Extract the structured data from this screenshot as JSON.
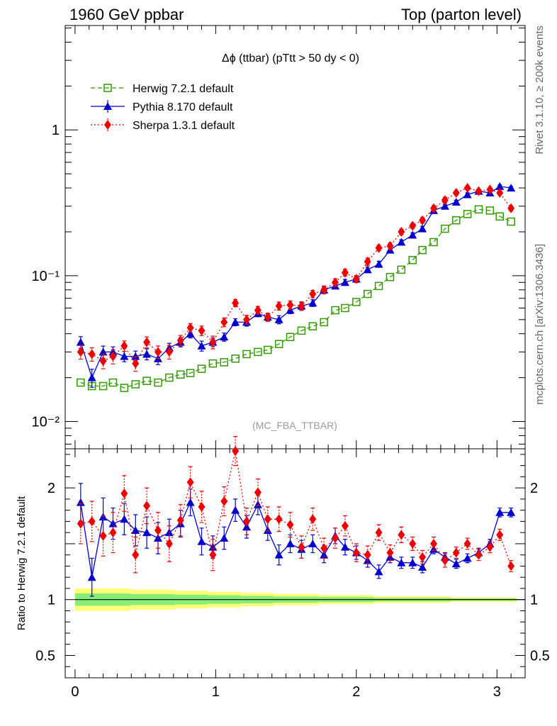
{
  "header": {
    "left": "1960 GeV ppbar",
    "right": "Top (parton level)"
  },
  "side_labels": {
    "rivet": "Rivet 3.1.10, ≥ 200k events",
    "mcplots": "mcplots.cern.ch [arXiv:1306.3436]"
  },
  "chart_data": {
    "type": "line",
    "title": "Δϕ (ttbar) (pTtt > 50 dy < 0)",
    "watermark": "(MC_FBA_TTBAR)",
    "xlim": [
      -0.07,
      3.2
    ],
    "x_ticks": [
      0,
      1,
      2,
      3
    ],
    "x_tick_labels": [
      "0",
      "1",
      "2",
      "3"
    ],
    "main": {
      "yscale": "log",
      "ylim": [
        0.0065,
        5.2
      ],
      "y_tick_labels": [
        {
          "value": 1,
          "label": "1"
        },
        {
          "value": 0.1,
          "label": "10⁻¹"
        },
        {
          "value": 0.01,
          "label": "10⁻²"
        }
      ]
    },
    "ratio": {
      "ylabel": "Ratio to Herwig 7.2.1 default",
      "ylim": [
        0.3,
        2.35
      ],
      "y_tick_labels": [
        {
          "value": 0.5,
          "label": "0.5"
        },
        {
          "value": 1,
          "label": "1"
        },
        {
          "value": 2,
          "label": "2"
        }
      ]
    },
    "x": [
      0.04,
      0.12,
      0.2,
      0.27,
      0.35,
      0.43,
      0.51,
      0.59,
      0.67,
      0.75,
      0.82,
      0.9,
      0.98,
      1.06,
      1.14,
      1.22,
      1.3,
      1.37,
      1.45,
      1.53,
      1.61,
      1.69,
      1.77,
      1.85,
      1.92,
      2.0,
      2.08,
      2.16,
      2.24,
      2.32,
      2.4,
      2.47,
      2.55,
      2.63,
      2.71,
      2.79,
      2.87,
      2.95,
      3.02,
      3.1
    ],
    "legend_position": "top-left",
    "series": [
      {
        "name": "Herwig 7.2.1 default",
        "color": "#339900",
        "marker": "open-square",
        "line": "dashed",
        "y": [
          0.0185,
          0.0175,
          0.0175,
          0.0185,
          0.017,
          0.018,
          0.019,
          0.0185,
          0.02,
          0.021,
          0.0215,
          0.023,
          0.025,
          0.0255,
          0.027,
          0.029,
          0.03,
          0.031,
          0.034,
          0.038,
          0.042,
          0.045,
          0.048,
          0.058,
          0.06,
          0.066,
          0.075,
          0.085,
          0.098,
          0.11,
          0.128,
          0.15,
          0.17,
          0.21,
          0.24,
          0.265,
          0.285,
          0.28,
          0.255,
          0.235
        ],
        "ratio": [
          1,
          1,
          1,
          1,
          1,
          1,
          1,
          1,
          1,
          1,
          1,
          1,
          1,
          1,
          1,
          1,
          1,
          1,
          1,
          1,
          1,
          1,
          1,
          1,
          1,
          1,
          1,
          1,
          1,
          1,
          1,
          1,
          1,
          1,
          1,
          1,
          1,
          1,
          1,
          1
        ],
        "ratio_err": [
          0.1,
          0.1,
          0.1,
          0.1,
          0.1,
          0.09,
          0.09,
          0.09,
          0.09,
          0.08,
          0.08,
          0.08,
          0.07,
          0.07,
          0.07,
          0.06,
          0.06,
          0.06,
          0.05,
          0.05,
          0.05,
          0.05,
          0.04,
          0.04,
          0.04,
          0.04,
          0.04,
          0.03,
          0.03,
          0.03,
          0.03,
          0.03,
          0.03,
          0.03,
          0.02,
          0.02,
          0.02,
          0.02,
          0.02,
          0.02
        ]
      },
      {
        "name": "Pythia 8.170 default",
        "color": "#0000cc",
        "marker": "triangle",
        "line": "solid",
        "y": [
          0.035,
          0.02,
          0.03,
          0.03,
          0.028,
          0.028,
          0.029,
          0.027,
          0.032,
          0.035,
          0.04,
          0.033,
          0.035,
          0.038,
          0.048,
          0.048,
          0.055,
          0.052,
          0.05,
          0.058,
          0.062,
          0.065,
          0.08,
          0.085,
          0.09,
          0.095,
          0.11,
          0.12,
          0.15,
          0.17,
          0.19,
          0.21,
          0.28,
          0.3,
          0.32,
          0.36,
          0.38,
          0.37,
          0.41,
          0.4
        ],
        "ratio": [
          1.87,
          1.2,
          1.74,
          1.68,
          1.72,
          1.62,
          1.6,
          1.55,
          1.6,
          1.68,
          1.87,
          1.52,
          1.47,
          1.55,
          1.8,
          1.65,
          1.85,
          1.62,
          1.4,
          1.5,
          1.45,
          1.5,
          1.4,
          1.57,
          1.47,
          1.42,
          1.35,
          1.25,
          1.38,
          1.33,
          1.33,
          1.29,
          1.45,
          1.38,
          1.32,
          1.37,
          1.42,
          1.5,
          1.78,
          1.78
        ],
        "ratio_err": [
          0.17,
          0.17,
          0.17,
          0.14,
          0.14,
          0.14,
          0.14,
          0.14,
          0.12,
          0.12,
          0.12,
          0.12,
          0.1,
          0.1,
          0.1,
          0.1,
          0.09,
          0.09,
          0.09,
          0.08,
          0.08,
          0.08,
          0.07,
          0.07,
          0.07,
          0.06,
          0.06,
          0.06,
          0.05,
          0.05,
          0.05,
          0.05,
          0.04,
          0.04,
          0.04,
          0.04,
          0.04,
          0.04,
          0.04,
          0.04
        ]
      },
      {
        "name": "Sherpa 1.3.1 default",
        "color": "#ee0000",
        "marker": "diamond",
        "line": "dotted",
        "y": [
          0.03,
          0.029,
          0.026,
          0.028,
          0.033,
          0.025,
          0.035,
          0.03,
          0.03,
          0.036,
          0.044,
          0.042,
          0.035,
          0.048,
          0.065,
          0.05,
          0.058,
          0.052,
          0.062,
          0.063,
          0.062,
          0.075,
          0.08,
          0.09,
          0.105,
          0.095,
          0.125,
          0.155,
          0.16,
          0.2,
          0.22,
          0.24,
          0.29,
          0.33,
          0.37,
          0.4,
          0.38,
          0.39,
          0.37,
          0.29
        ],
        "ratio": [
          1.68,
          1.7,
          1.57,
          1.6,
          1.95,
          1.4,
          1.84,
          1.62,
          1.5,
          1.71,
          2.05,
          1.83,
          1.4,
          1.88,
          2.33,
          1.7,
          1.96,
          1.72,
          1.72,
          1.67,
          1.47,
          1.72,
          1.46,
          1.55,
          1.66,
          1.42,
          1.4,
          1.6,
          1.42,
          1.58,
          1.5,
          1.38,
          1.5,
          1.35,
          1.42,
          1.5,
          1.4,
          1.47,
          1.58,
          1.3
        ],
        "ratio_err": [
          0.18,
          0.18,
          0.18,
          0.18,
          0.16,
          0.16,
          0.16,
          0.16,
          0.16,
          0.14,
          0.14,
          0.14,
          0.14,
          0.13,
          0.13,
          0.12,
          0.12,
          0.11,
          0.11,
          0.11,
          0.1,
          0.1,
          0.09,
          0.09,
          0.09,
          0.08,
          0.08,
          0.07,
          0.07,
          0.07,
          0.06,
          0.06,
          0.06,
          0.06,
          0.05,
          0.05,
          0.05,
          0.05,
          0.05,
          0.05
        ]
      }
    ]
  }
}
